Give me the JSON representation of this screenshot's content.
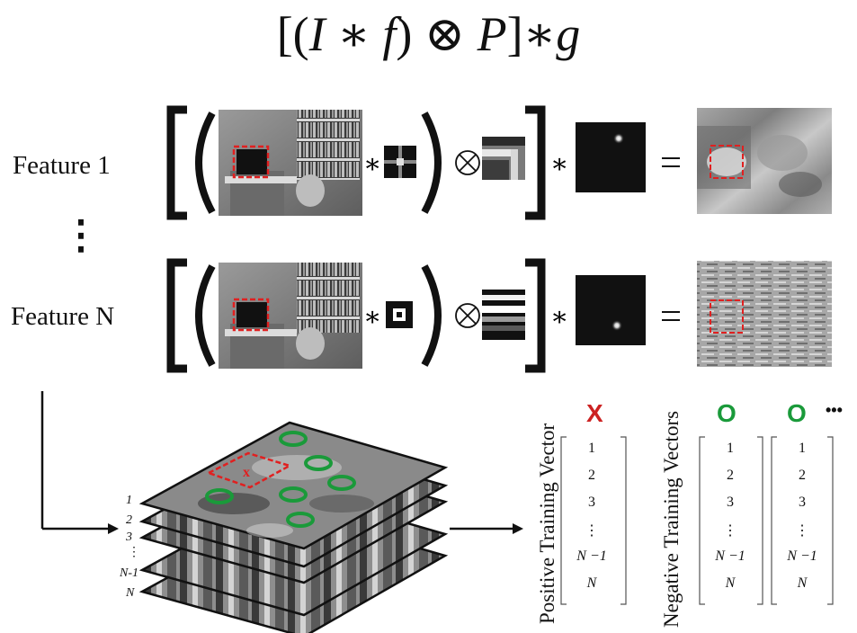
{
  "formula": {
    "open": "[(",
    "I": "I",
    "star1": " ∗ ",
    "f": "f",
    "close1": ")",
    "otimes": " ⊗ ",
    "P": "P",
    "close2": "]",
    "star2": "∗",
    "g": "g"
  },
  "rows": [
    {
      "label": "Feature 1"
    },
    {
      "label": "Feature N"
    }
  ],
  "vertical_dots": "⋮",
  "operators": {
    "convolve": "∗",
    "tensor": "⊗",
    "equals": "="
  },
  "layers": [
    "1",
    "2",
    "3",
    "⋮",
    "N-1",
    "N"
  ],
  "vectors": {
    "positive_title": "Positive Training Vector",
    "negative_title": "Negative Training Vectors",
    "positive_marker": "X",
    "negative_marker": "O",
    "ellipsis": "•••",
    "entries": [
      "1",
      "2",
      "3",
      "⋮",
      "N −1",
      "N"
    ]
  },
  "colors": {
    "positive_marker": "#cc2222",
    "negative_marker": "#1a9a3a",
    "dashed_box": "#e02020"
  }
}
